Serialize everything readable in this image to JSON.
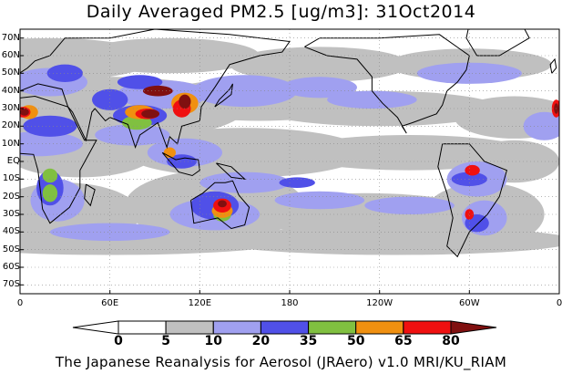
{
  "title": "Daily Averaged PM2.5 [ug/m3]: 31Oct2014",
  "credit": "The Japanese Reanalysis for Aerosol (JRAero) v1.0 MRI/KU_RIAM",
  "lat_ticks": [
    {
      "label": "70N",
      "lat": 70
    },
    {
      "label": "60N",
      "lat": 60
    },
    {
      "label": "50N",
      "lat": 50
    },
    {
      "label": "40N",
      "lat": 40
    },
    {
      "label": "30N",
      "lat": 30
    },
    {
      "label": "20N",
      "lat": 20
    },
    {
      "label": "10N",
      "lat": 10
    },
    {
      "label": "EQ",
      "lat": 0
    },
    {
      "label": "10S",
      "lat": -10
    },
    {
      "label": "20S",
      "lat": -20
    },
    {
      "label": "30S",
      "lat": -30
    },
    {
      "label": "40S",
      "lat": -40
    },
    {
      "label": "50S",
      "lat": -50
    },
    {
      "label": "60S",
      "lat": -60
    },
    {
      "label": "70S",
      "lat": -70
    }
  ],
  "lon_ticks": [
    {
      "label": "0",
      "lon": 0
    },
    {
      "label": "60E",
      "lon": 60
    },
    {
      "label": "120E",
      "lon": 120
    },
    {
      "label": "180",
      "lon": 180
    },
    {
      "label": "120W",
      "lon": 240
    },
    {
      "label": "60W",
      "lon": 300
    },
    {
      "label": "0",
      "lon": 360
    }
  ],
  "colorbar": {
    "levels": [
      "0",
      "5",
      "10",
      "20",
      "35",
      "50",
      "65",
      "80"
    ],
    "colors": [
      "#ffffff",
      "#ffffff",
      "#c0c0c0",
      "#a0a0f0",
      "#5050e8",
      "#80c040",
      "#f09010",
      "#f01010",
      "#801010"
    ]
  },
  "colors": {
    "grey": "#c0c0c0",
    "lightblue": "#a0a0f0",
    "blue": "#5050e8",
    "green": "#80c040",
    "orange": "#f09010",
    "red": "#f01010",
    "darkred": "#801010"
  }
}
